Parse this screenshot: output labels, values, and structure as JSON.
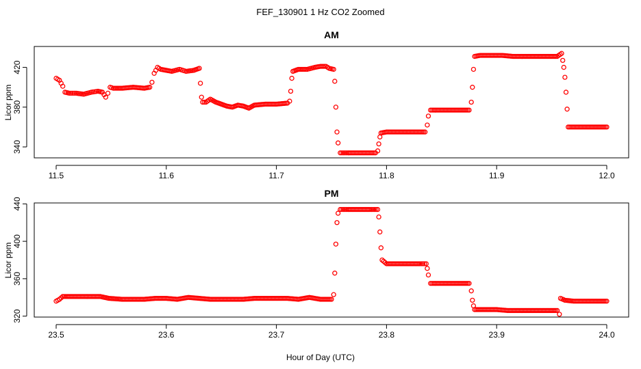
{
  "figure": {
    "title": "FEF_130901  1 Hz CO2 Zoomed",
    "xlabel": "Hour of Day (UTC)"
  },
  "chart_data": [
    {
      "type": "scatter",
      "title": "AM",
      "ylabel": "Licor ppm",
      "xlim": [
        11.5,
        12.0
      ],
      "ylim": [
        329,
        441
      ],
      "xticks": [
        11.5,
        11.6,
        11.7,
        11.8,
        11.9,
        12.0
      ],
      "xtick_labels": [
        "11.5",
        "11.6",
        "11.7",
        "11.8",
        "11.9",
        "12.0"
      ],
      "yticks": [
        340,
        380,
        420
      ],
      "ytick_labels": [
        "340",
        "380",
        "420"
      ],
      "grid": false,
      "color": "#ff0000",
      "series": [
        {
          "points": [
            [
              11.5,
              409
            ],
            [
              11.503,
              407
            ],
            [
              11.506,
              401
            ],
            [
              11.508,
              395
            ],
            [
              11.512,
              394
            ],
            [
              11.518,
              394
            ],
            [
              11.525,
              393
            ],
            [
              11.532,
              395
            ],
            [
              11.538,
              396
            ],
            [
              11.542,
              395
            ],
            [
              11.545,
              390
            ],
            [
              11.547,
              394
            ],
            [
              11.549,
              400
            ],
            [
              11.552,
              399
            ],
            [
              11.56,
              399
            ],
            [
              11.57,
              400
            ],
            [
              11.58,
              399
            ],
            [
              11.585,
              400
            ],
            [
              11.587,
              405
            ],
            [
              11.589,
              414
            ],
            [
              11.592,
              420
            ],
            [
              11.595,
              418
            ],
            [
              11.6,
              417
            ],
            [
              11.605,
              416
            ],
            [
              11.612,
              418
            ],
            [
              11.618,
              416
            ],
            [
              11.625,
              417
            ],
            [
              11.63,
              419
            ],
            [
              11.631,
              404
            ],
            [
              11.632,
              390
            ],
            [
              11.633,
              385
            ],
            [
              11.636,
              385
            ],
            [
              11.64,
              388
            ],
            [
              11.645,
              385
            ],
            [
              11.65,
              383
            ],
            [
              11.655,
              381
            ],
            [
              11.66,
              380
            ],
            [
              11.665,
              382
            ],
            [
              11.67,
              381
            ],
            [
              11.675,
              379
            ],
            [
              11.68,
              382
            ],
            [
              11.69,
              383
            ],
            [
              11.7,
              383
            ],
            [
              11.71,
              384
            ],
            [
              11.712,
              386
            ],
            [
              11.713,
              396
            ],
            [
              11.714,
              409
            ],
            [
              11.715,
              416
            ],
            [
              11.72,
              418
            ],
            [
              11.728,
              418
            ],
            [
              11.735,
              420
            ],
            [
              11.74,
              421
            ],
            [
              11.745,
              421
            ],
            [
              11.748,
              419
            ],
            [
              11.752,
              418
            ],
            [
              11.753,
              406
            ],
            [
              11.754,
              380
            ],
            [
              11.755,
              355
            ],
            [
              11.756,
              344
            ],
            [
              11.758,
              334
            ],
            [
              11.765,
              334
            ],
            [
              11.775,
              334
            ],
            [
              11.785,
              334
            ],
            [
              11.79,
              334
            ],
            [
              11.792,
              336
            ],
            [
              11.793,
              343
            ],
            [
              11.794,
              350
            ],
            [
              11.795,
              354
            ],
            [
              11.8,
              355
            ],
            [
              11.81,
              355
            ],
            [
              11.82,
              355
            ],
            [
              11.83,
              355
            ],
            [
              11.835,
              355
            ],
            [
              11.837,
              362
            ],
            [
              11.838,
              371
            ],
            [
              11.84,
              377
            ],
            [
              11.845,
              377
            ],
            [
              11.855,
              377
            ],
            [
              11.865,
              377
            ],
            [
              11.875,
              377
            ],
            [
              11.877,
              385
            ],
            [
              11.878,
              400
            ],
            [
              11.879,
              418
            ],
            [
              11.88,
              431
            ],
            [
              11.885,
              432
            ],
            [
              11.895,
              432
            ],
            [
              11.905,
              432
            ],
            [
              11.915,
              431
            ],
            [
              11.925,
              431
            ],
            [
              11.935,
              431
            ],
            [
              11.945,
              431
            ],
            [
              11.955,
              431
            ],
            [
              11.959,
              434
            ],
            [
              11.96,
              427
            ],
            [
              11.961,
              420
            ],
            [
              11.962,
              410
            ],
            [
              11.963,
              395
            ],
            [
              11.964,
              378
            ],
            [
              11.965,
              360
            ],
            [
              11.97,
              360
            ],
            [
              11.98,
              360
            ],
            [
              11.99,
              360
            ],
            [
              12.0,
              360
            ]
          ]
        }
      ]
    },
    {
      "type": "scatter",
      "title": "PM",
      "ylabel": "Licor ppm",
      "xlim": [
        23.5,
        24.0
      ],
      "ylim": [
        319,
        441
      ],
      "xticks": [
        23.5,
        23.6,
        23.7,
        23.8,
        23.9,
        24.0
      ],
      "xtick_labels": [
        "23.5",
        "23.6",
        "23.7",
        "23.8",
        "23.9",
        "24.0"
      ],
      "yticks": [
        320,
        360,
        400,
        440
      ],
      "ytick_labels": [
        "320",
        "360",
        "400",
        "440"
      ],
      "grid": false,
      "color": "#ff0000",
      "series": [
        {
          "points": [
            [
              23.5,
              336
            ],
            [
              23.503,
              338
            ],
            [
              23.506,
              341
            ],
            [
              23.51,
              341
            ],
            [
              23.52,
              341
            ],
            [
              23.53,
              341
            ],
            [
              23.54,
              341
            ],
            [
              23.548,
              339
            ],
            [
              23.56,
              338
            ],
            [
              23.57,
              338
            ],
            [
              23.58,
              338
            ],
            [
              23.59,
              339
            ],
            [
              23.6,
              339
            ],
            [
              23.61,
              338
            ],
            [
              23.62,
              340
            ],
            [
              23.63,
              339
            ],
            [
              23.64,
              338
            ],
            [
              23.65,
              338
            ],
            [
              23.66,
              338
            ],
            [
              23.67,
              338
            ],
            [
              23.68,
              339
            ],
            [
              23.69,
              339
            ],
            [
              23.7,
              339
            ],
            [
              23.71,
              339
            ],
            [
              23.72,
              338
            ],
            [
              23.73,
              340
            ],
            [
              23.74,
              338
            ],
            [
              23.75,
              338
            ],
            [
              23.752,
              343
            ],
            [
              23.753,
              366
            ],
            [
              23.754,
              397
            ],
            [
              23.755,
              420
            ],
            [
              23.756,
              430
            ],
            [
              23.758,
              434
            ],
            [
              23.765,
              434
            ],
            [
              23.775,
              434
            ],
            [
              23.785,
              434
            ],
            [
              23.792,
              434
            ],
            [
              23.793,
              426
            ],
            [
              23.794,
              410
            ],
            [
              23.795,
              393
            ],
            [
              23.796,
              380
            ],
            [
              23.8,
              376
            ],
            [
              23.81,
              376
            ],
            [
              23.82,
              376
            ],
            [
              23.83,
              376
            ],
            [
              23.836,
              376
            ],
            [
              23.837,
              371
            ],
            [
              23.838,
              364
            ],
            [
              23.84,
              355
            ],
            [
              23.845,
              355
            ],
            [
              23.855,
              355
            ],
            [
              23.865,
              355
            ],
            [
              23.875,
              355
            ],
            [
              23.877,
              347
            ],
            [
              23.878,
              337
            ],
            [
              23.879,
              331
            ],
            [
              23.88,
              327
            ],
            [
              23.89,
              327
            ],
            [
              23.9,
              327
            ],
            [
              23.91,
              326
            ],
            [
              23.92,
              326
            ],
            [
              23.93,
              326
            ],
            [
              23.94,
              326
            ],
            [
              23.95,
              326
            ],
            [
              23.955,
              326
            ],
            [
              23.957,
              322
            ],
            [
              23.958,
              339
            ],
            [
              23.962,
              337
            ],
            [
              23.97,
              336
            ],
            [
              23.98,
              336
            ],
            [
              23.99,
              336
            ],
            [
              24.0,
              336
            ]
          ]
        }
      ]
    }
  ]
}
